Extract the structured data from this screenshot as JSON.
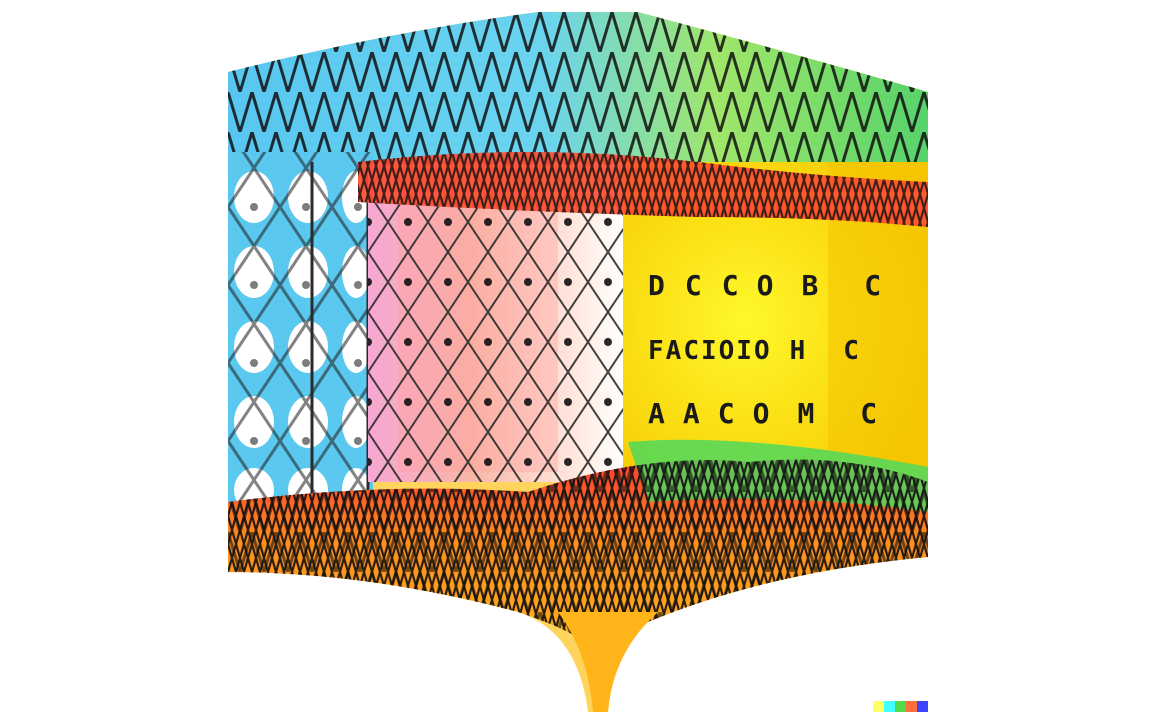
{
  "artwork": {
    "glyph_rows": [
      [
        "D",
        "C",
        "C",
        "O",
        "B",
        "C"
      ],
      [
        "F",
        "A",
        "C",
        "I",
        "O",
        "I",
        "O",
        "H",
        "C"
      ],
      [
        "A",
        "A",
        "C",
        "O",
        "M",
        "C"
      ]
    ],
    "palette": [
      "#5bc8ef",
      "#f582c8",
      "#ff3b2f",
      "#ffef22",
      "#f6c700",
      "#ffa615",
      "#56d36b"
    ],
    "watermark_colors": [
      "#ffff66",
      "#42ffff",
      "#51da4c",
      "#ff6e3c",
      "#3c46ff"
    ]
  }
}
